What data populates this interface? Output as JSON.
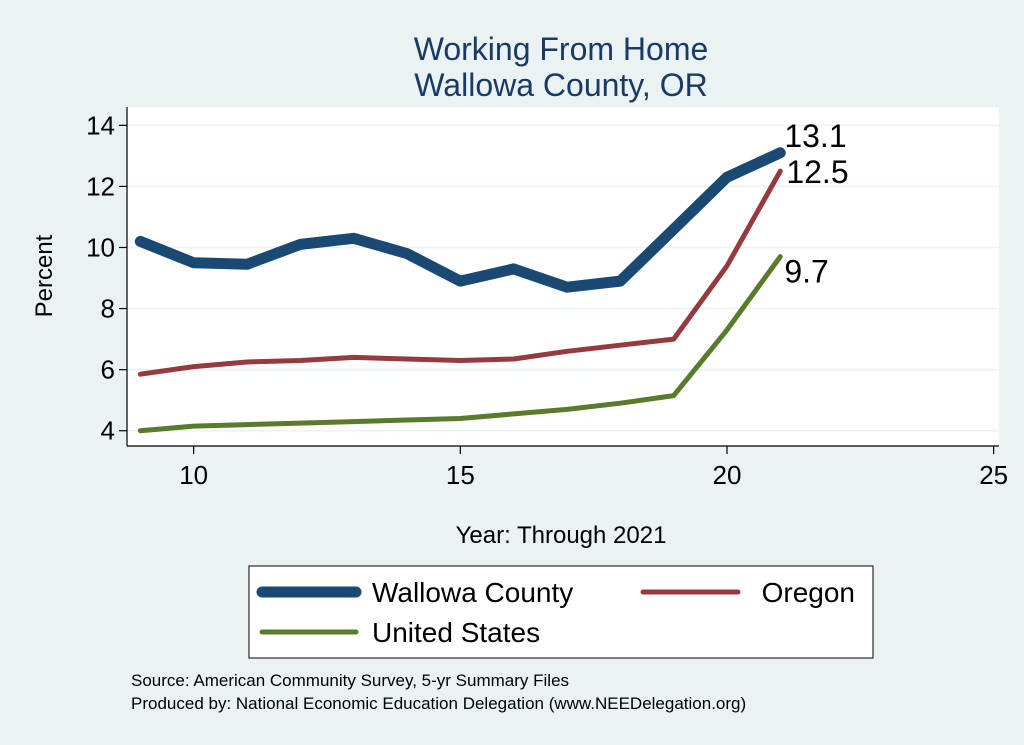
{
  "chart_data": {
    "type": "line",
    "title": [
      "Working From Home",
      "Wallowa County, OR"
    ],
    "xlabel": "Year: Through 2021",
    "ylabel": "Percent",
    "xlim": [
      8.75,
      25.1
    ],
    "ylim": [
      3.5,
      14.6
    ],
    "xticks": [
      10,
      15,
      20,
      25
    ],
    "yticks": [
      4,
      6,
      8,
      10,
      12,
      14
    ],
    "grid": true,
    "series": [
      {
        "name": "Wallowa County",
        "color": "#1a4a74",
        "x": [
          9,
          10,
          11,
          12,
          13,
          14,
          15,
          16,
          17,
          18,
          19,
          20,
          21
        ],
        "values": [
          10.2,
          9.5,
          9.45,
          10.1,
          10.3,
          9.8,
          8.9,
          9.3,
          8.7,
          8.9,
          10.6,
          12.3,
          13.1
        ],
        "end_label": "13.1"
      },
      {
        "name": "Oregon",
        "color": "#973a3f",
        "x": [
          9,
          10,
          11,
          12,
          13,
          14,
          15,
          16,
          17,
          18,
          19,
          20,
          21
        ],
        "values": [
          5.85,
          6.1,
          6.25,
          6.3,
          6.4,
          6.35,
          6.3,
          6.35,
          6.6,
          6.8,
          7.0,
          9.4,
          12.5
        ],
        "end_label": "12.5"
      },
      {
        "name": "United States",
        "color": "#5a7a2c",
        "x": [
          9,
          10,
          11,
          12,
          13,
          14,
          15,
          16,
          17,
          18,
          19,
          20,
          21
        ],
        "values": [
          4.0,
          4.15,
          4.2,
          4.25,
          4.3,
          4.35,
          4.4,
          4.55,
          4.7,
          4.9,
          5.15,
          7.3,
          9.7
        ],
        "end_label": "9.7"
      }
    ],
    "legend": {
      "position": "bottom",
      "entries": [
        "Wallowa County",
        "Oregon",
        "United States"
      ]
    },
    "source_lines": [
      "Source: American Community Survey, 5-yr Summary Files",
      "Produced by: National Economic Education Delegation (www.NEEDelegation.org)"
    ]
  }
}
